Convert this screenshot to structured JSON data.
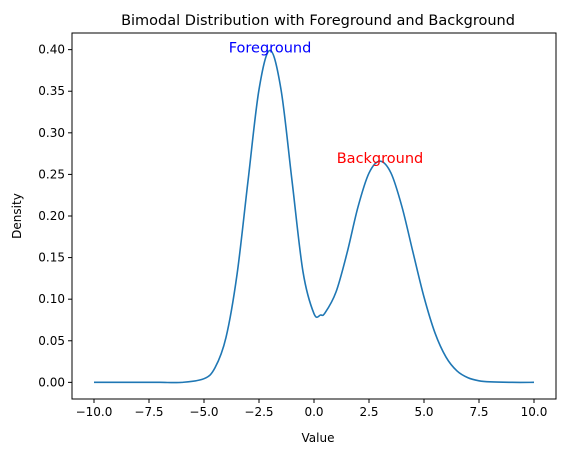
{
  "colors": {
    "line": "#1f77b4",
    "foreground_annotation": "#0000ff",
    "background_annotation": "#ff0000",
    "axes": "#000000",
    "background": "#ffffff"
  },
  "chart_data": {
    "type": "line",
    "title": "Bimodal Distribution with Foreground and Background",
    "xlabel": "Value",
    "ylabel": "Density",
    "xlim": [
      -11,
      11
    ],
    "ylim": [
      -0.02,
      0.42
    ],
    "xticks": [
      -10.0,
      -7.5,
      -5.0,
      -2.5,
      0.0,
      2.5,
      5.0,
      7.5,
      10.0
    ],
    "xtick_labels": [
      "−10.0",
      "−7.5",
      "−5.0",
      "−2.5",
      "0.0",
      "2.5",
      "5.0",
      "7.5",
      "10.0"
    ],
    "yticks": [
      0.0,
      0.05,
      0.1,
      0.15,
      0.2,
      0.25,
      0.3,
      0.35,
      0.4
    ],
    "ytick_labels": [
      "0.00",
      "0.05",
      "0.10",
      "0.15",
      "0.20",
      "0.25",
      "0.30",
      "0.35",
      "0.40"
    ],
    "grid": false,
    "series": [
      {
        "x": [
          -10.0,
          -9.0,
          -8.0,
          -7.0,
          -6.0,
          -5.0,
          -4.5,
          -4.0,
          -3.5,
          -3.0,
          -2.5,
          -2.0,
          -1.5,
          -1.0,
          -0.5,
          0.0,
          0.3,
          0.5,
          1.0,
          1.5,
          2.0,
          2.5,
          3.0,
          3.5,
          4.0,
          4.5,
          5.0,
          5.5,
          6.0,
          6.5,
          7.0,
          7.5,
          8.0,
          9.0,
          10.0
        ],
        "y": [
          0.0,
          0.0,
          0.0,
          0.0,
          0.0,
          0.0044,
          0.0175,
          0.054,
          0.1295,
          0.242,
          0.352,
          0.399,
          0.3521,
          0.2425,
          0.1329,
          0.0826,
          0.081,
          0.0834,
          0.1086,
          0.1554,
          0.2109,
          0.2516,
          0.2659,
          0.2516,
          0.2109,
          0.1563,
          0.1026,
          0.0594,
          0.0304,
          0.0137,
          0.0055,
          0.0019,
          0.0006,
          0.0,
          0.0
        ]
      }
    ],
    "annotations": [
      {
        "text": "Foreground",
        "x": -2.0,
        "y": 0.399,
        "color": "#0000ff"
      },
      {
        "text": "Background",
        "x": 3.0,
        "y": 0.266,
        "color": "#ff0000"
      }
    ]
  }
}
